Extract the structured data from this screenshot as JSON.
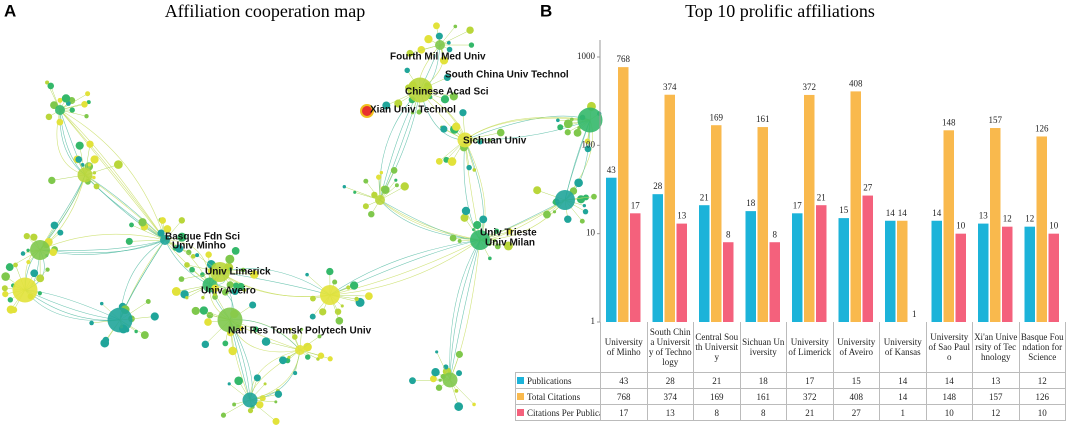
{
  "network": {
    "panel": "A",
    "title": "Affiliation cooperation map",
    "labels": [
      "Fourth Mil Med Univ",
      "South China Univ Technol",
      "Chinese Acad Sci",
      "Xian Univ Technol",
      "Sichuan Univ",
      "Basque Fdn Sci",
      "Univ Minho",
      "Univ Limerick",
      "Univ Aveiro",
      "Univ Trieste",
      "Univ Milan",
      "Natl Res Tomsk Polytech Univ"
    ]
  },
  "chart_data": {
    "type": "bar",
    "panel": "B",
    "title": "Top 10 prolific affiliations",
    "categories": [
      "University of Minho",
      "South China University of Technology",
      "Central South University",
      "Sichuan University",
      "University of Limerick",
      "University of Aveiro",
      "University of Kansas",
      "University of Sao Paulo",
      "Xi'an University of Technology",
      "Basque Foundation for Science"
    ],
    "series": [
      {
        "name": "Publications",
        "color": "#1cb3d9",
        "values": [
          43,
          28,
          21,
          18,
          17,
          15,
          14,
          14,
          13,
          12
        ]
      },
      {
        "name": "Total Citations",
        "color": "#f9b94d",
        "values": [
          768,
          374,
          169,
          161,
          372,
          408,
          14,
          148,
          157,
          126
        ]
      },
      {
        "name": "Citations Per Publication",
        "color": "#f4617c",
        "values": [
          17,
          13,
          8,
          8,
          21,
          27,
          1,
          10,
          12,
          10
        ]
      }
    ],
    "log_scale": true,
    "ylim": [
      1,
      1000
    ],
    "yticks": [
      1,
      10,
      100,
      1000
    ],
    "grid": false
  }
}
